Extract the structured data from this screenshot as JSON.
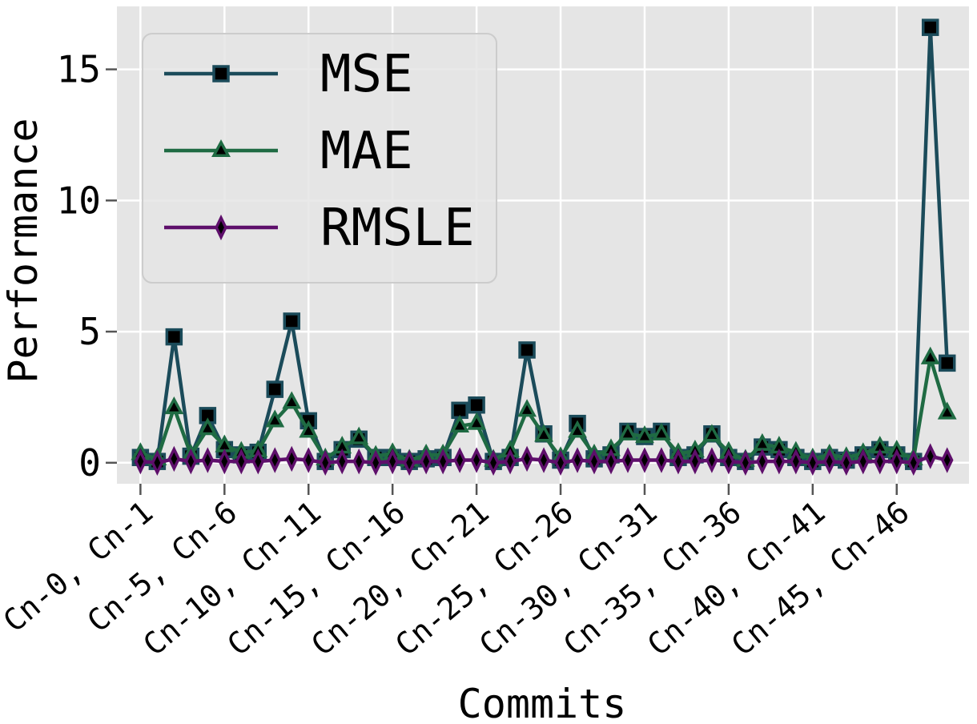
{
  "chart_data": {
    "type": "line",
    "xlabel": "Commits",
    "ylabel": "Performance",
    "ylim": [
      -0.8,
      17.4
    ],
    "yticks": [
      0,
      5,
      10,
      15
    ],
    "grid": true,
    "legend_position": "top-left",
    "x_count": 49,
    "x_tick_positions": [
      0,
      5,
      10,
      15,
      20,
      25,
      30,
      35,
      40,
      45
    ],
    "x_tick_labels": [
      "Cn-0, Cn-1",
      "Cn-5, Cn-6",
      "Cn-10, Cn-11",
      "Cn-15, Cn-16",
      "Cn-20, Cn-21",
      "Cn-25, Cn-26",
      "Cn-30, Cn-31",
      "Cn-35, Cn-36",
      "Cn-40, Cn-41",
      "Cn-45, Cn-46"
    ],
    "series": [
      {
        "name": "MSE",
        "color": "#1b4b5a",
        "marker": "square",
        "values": [
          0.2,
          0.05,
          4.8,
          0.25,
          1.8,
          0.5,
          0.3,
          0.4,
          2.8,
          5.4,
          1.6,
          0.05,
          0.5,
          0.9,
          0.2,
          0.2,
          0.05,
          0.15,
          0.2,
          2.0,
          2.2,
          0.05,
          0.2,
          4.3,
          1.1,
          0.1,
          1.5,
          0.15,
          0.3,
          1.2,
          1.0,
          1.2,
          0.2,
          0.3,
          1.1,
          0.2,
          0.05,
          0.6,
          0.5,
          0.2,
          0.05,
          0.2,
          0.1,
          0.3,
          0.5,
          0.3,
          0.05,
          16.6,
          3.8
        ]
      },
      {
        "name": "MAE",
        "color": "#1f6b43",
        "marker": "triangle",
        "values": [
          0.35,
          0.15,
          2.1,
          0.3,
          1.3,
          0.65,
          0.4,
          0.45,
          1.6,
          2.3,
          1.2,
          0.15,
          0.6,
          0.95,
          0.25,
          0.35,
          0.1,
          0.3,
          0.3,
          1.4,
          1.5,
          0.1,
          0.45,
          2.0,
          1.05,
          0.2,
          1.2,
          0.3,
          0.5,
          1.1,
          1.0,
          1.1,
          0.35,
          0.45,
          1.05,
          0.4,
          0.1,
          0.7,
          0.6,
          0.4,
          0.15,
          0.3,
          0.2,
          0.35,
          0.6,
          0.45,
          0.15,
          4.0,
          1.9
        ]
      },
      {
        "name": "RMSLE",
        "color": "#5e0f6b",
        "marker": "diamond",
        "values": [
          0.05,
          0.0,
          0.15,
          0.05,
          0.1,
          0.05,
          0.05,
          0.05,
          0.1,
          0.15,
          0.1,
          0.0,
          0.05,
          0.05,
          0.0,
          0.05,
          0.0,
          0.05,
          0.05,
          0.1,
          0.1,
          0.0,
          0.05,
          0.15,
          0.1,
          0.0,
          0.1,
          0.05,
          0.05,
          0.1,
          0.1,
          0.1,
          0.05,
          0.05,
          0.1,
          0.05,
          0.0,
          0.05,
          0.05,
          0.05,
          0.0,
          0.05,
          0.0,
          0.05,
          0.05,
          0.05,
          0.0,
          0.25,
          0.1
        ]
      }
    ]
  }
}
